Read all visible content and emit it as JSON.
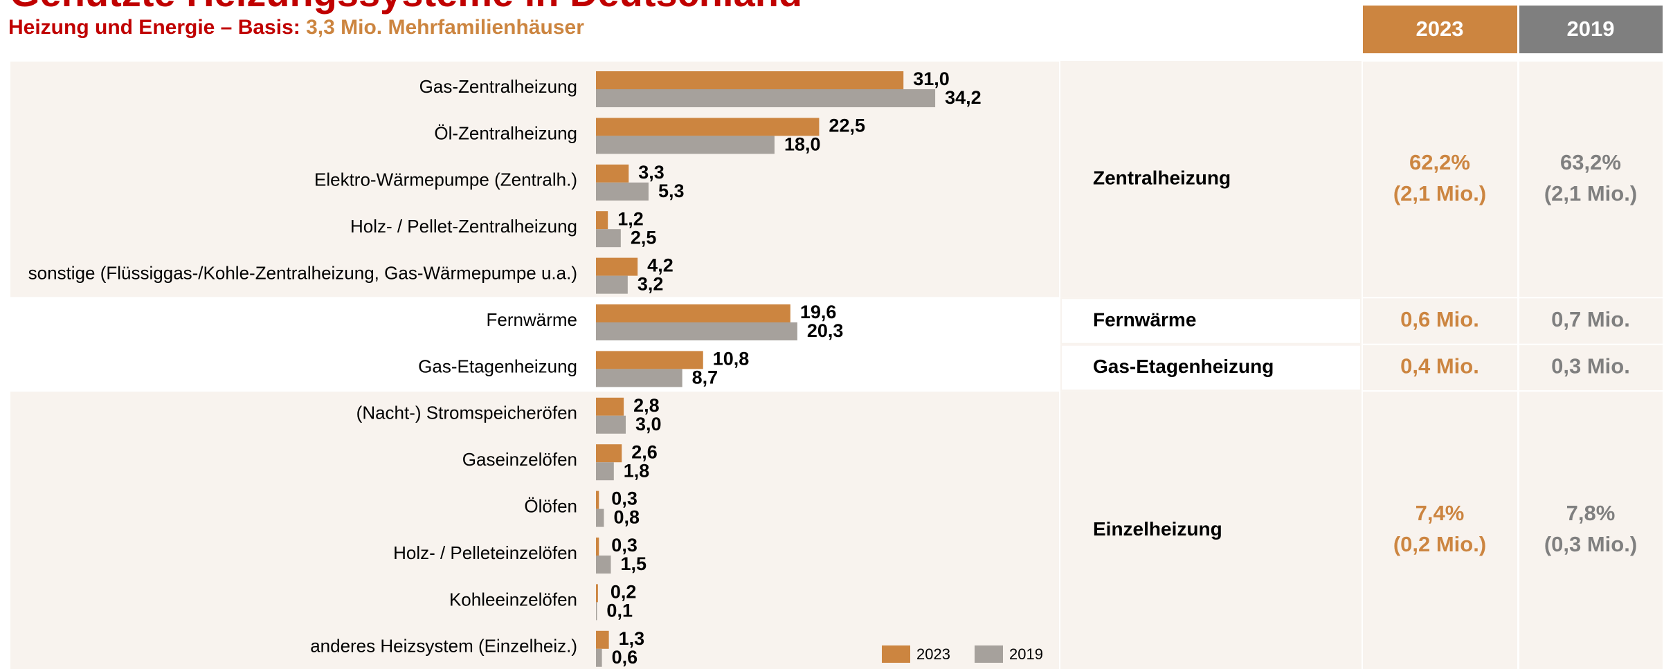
{
  "chart_data": {
    "type": "bar",
    "orientation": "horizontal",
    "title": "Genutzte Heizungssysteme in Deutschland",
    "subtitle": "Heizung und Energie – Basis:",
    "subtitle_basis": "3,3 Mio. Mehrfamilienhäuser",
    "categories": [
      "Gas-Zentralheizung",
      "Öl-Zentralheizung",
      "Elektro-Wärmepumpe (Zentralh.)",
      "Holz- / Pellet-Zentralheizung",
      "sonstige (Flüssiggas-/Kohle-Zentralheizung, Gas-Wärmepumpe u.a.)",
      "Fernwärme",
      "Gas-Etagenheizung",
      "(Nacht-) Stromspeicheröfen",
      "Gaseinzelöfen",
      "Ölöfen",
      "Holz- / Pelleteinzelöfen",
      "Kohleeinzelöfen",
      "anderes Heizsystem (Einzelheiz.)"
    ],
    "series": [
      {
        "name": "2023",
        "color": "#cc8540",
        "values": [
          31.0,
          22.5,
          3.3,
          1.2,
          4.2,
          19.6,
          10.8,
          2.8,
          2.6,
          0.3,
          0.3,
          0.2,
          1.3
        ],
        "value_labels": [
          "31,0",
          "22,5",
          "3,3",
          "1,2",
          "4,2",
          "19,6",
          "10,8",
          "2,8",
          "2,6",
          "0,3",
          "0,3",
          "0,2",
          "1,3"
        ]
      },
      {
        "name": "2019",
        "color": "#a6a19c",
        "values": [
          34.2,
          18.0,
          5.3,
          2.5,
          3.2,
          20.3,
          8.7,
          3.0,
          1.8,
          0.8,
          1.5,
          0.1,
          0.6
        ],
        "value_labels": [
          "34,2",
          "18,0",
          "5,3",
          "2,5",
          "3,2",
          "20,3",
          "8,7",
          "3,0",
          "1,8",
          "0,8",
          "1,5",
          "0,1",
          "0,6"
        ]
      }
    ],
    "legend": "bottom-right"
  },
  "table": {
    "groups": [
      {
        "label": "Zentralheizung",
        "cells": [
          [
            "62,2%",
            "(2,1 Mio.)"
          ],
          [
            "63,2%",
            "(2,1 Mio.)"
          ]
        ]
      },
      {
        "label": "Fernwärme",
        "cells": [
          [
            "0,6 Mio."
          ],
          [
            "0,7 Mio."
          ]
        ]
      },
      {
        "label": "Gas-Etagenheizung",
        "cells": [
          [
            "0,4 Mio."
          ],
          [
            "0,3 Mio."
          ]
        ]
      },
      {
        "label": "Einzelheizung",
        "cells": [
          [
            "7,4%",
            "(0,2 Mio.)"
          ],
          [
            "7,8%",
            "(0,3 Mio.)"
          ]
        ]
      }
    ]
  }
}
